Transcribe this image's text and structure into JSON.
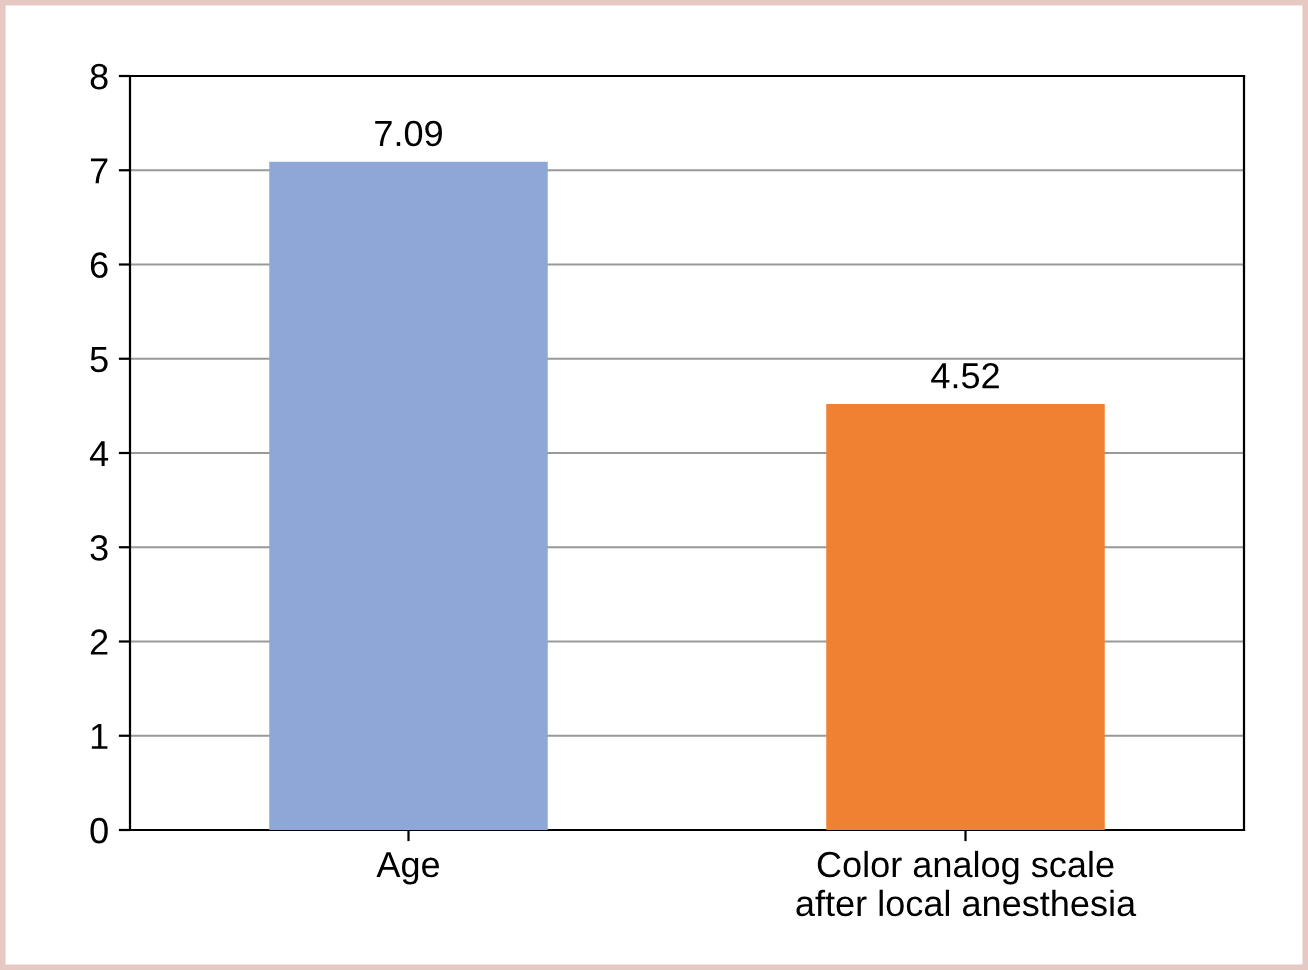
{
  "chart_data": {
    "type": "bar",
    "categories": [
      "Age",
      "Color analog scale\nafter local anesthesia"
    ],
    "values": [
      7.09,
      4.52
    ],
    "colors": [
      "#8fa7d6",
      "#f08132"
    ],
    "ylim": [
      0,
      8
    ],
    "yticks": [
      0,
      1,
      2,
      3,
      4,
      5,
      6,
      7,
      8
    ],
    "grid": "y",
    "data_labels": true
  }
}
